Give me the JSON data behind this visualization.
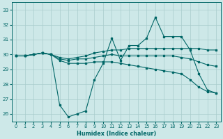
{
  "xlabel": "Humidex (Indice chaleur)",
  "bg_color": "#cde8e8",
  "grid_color": "#a8cccc",
  "line_color": "#006666",
  "xlim": [
    -0.5,
    23.5
  ],
  "ylim": [
    25.5,
    33.5
  ],
  "yticks": [
    26,
    27,
    28,
    29,
    30,
    31,
    32,
    33
  ],
  "xticks": [
    0,
    1,
    2,
    3,
    4,
    5,
    6,
    7,
    8,
    9,
    10,
    11,
    12,
    13,
    14,
    15,
    16,
    17,
    18,
    19,
    20,
    21,
    22,
    23
  ],
  "series1": [
    29.9,
    29.9,
    30.0,
    30.1,
    30.0,
    26.6,
    25.8,
    26.0,
    26.2,
    28.3,
    29.4,
    31.1,
    29.6,
    30.6,
    30.6,
    31.1,
    32.5,
    31.2,
    31.2,
    31.2,
    30.3,
    28.7,
    27.6,
    27.4
  ],
  "series2": [
    29.9,
    29.9,
    30.0,
    30.1,
    30.0,
    29.8,
    29.7,
    29.8,
    29.9,
    30.1,
    30.2,
    30.3,
    30.3,
    30.4,
    30.4,
    30.4,
    30.4,
    30.4,
    30.4,
    30.4,
    30.4,
    30.4,
    30.3,
    30.3
  ],
  "series3": [
    29.9,
    29.9,
    30.0,
    30.1,
    30.0,
    29.7,
    29.6,
    29.7,
    29.7,
    29.8,
    29.9,
    30.0,
    29.9,
    29.9,
    29.9,
    29.9,
    29.9,
    29.9,
    29.9,
    29.8,
    29.7,
    29.5,
    29.3,
    29.2
  ],
  "series4": [
    29.9,
    29.9,
    30.0,
    30.1,
    30.0,
    29.6,
    29.4,
    29.4,
    29.4,
    29.5,
    29.5,
    29.5,
    29.4,
    29.3,
    29.2,
    29.1,
    29.0,
    28.9,
    28.8,
    28.7,
    28.3,
    27.8,
    27.5,
    27.4
  ]
}
